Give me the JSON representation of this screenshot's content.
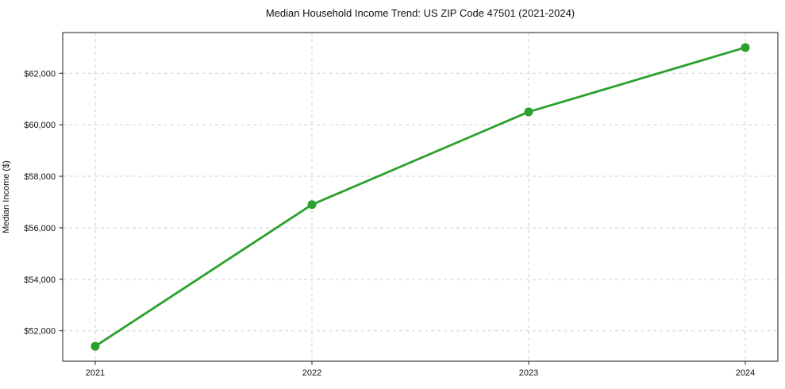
{
  "figure": {
    "title": "Median Household Income Trend: US ZIP Code 47501 (2021-2024)",
    "ylabel": "Median Income ($)"
  },
  "chart_data": {
    "type": "line",
    "title": "Median Household Income Trend: US ZIP Code 47501 (2021-2024)",
    "xlabel": "",
    "ylabel": "Median Income ($)",
    "x": [
      2021,
      2022,
      2023,
      2024
    ],
    "series": [
      {
        "name": "Median Household Income",
        "values": [
          51400,
          56900,
          60500,
          63000
        ]
      }
    ],
    "xticks": {
      "values": [
        2021,
        2022,
        2023,
        2024
      ],
      "labels": [
        "2021",
        "2022",
        "2023",
        "2024"
      ]
    },
    "yticks": {
      "values": [
        52000,
        54000,
        56000,
        58000,
        60000,
        62000
      ],
      "labels": [
        "$52,000",
        "$54,000",
        "$56,000",
        "$58,000",
        "$60,000",
        "$62,000"
      ]
    },
    "xlim": [
      2020.85,
      2024.15
    ],
    "ylim": [
      50820,
      63580
    ],
    "grid": true,
    "grid_style": "dashed",
    "legend": "none",
    "colors": {
      "line": "#2ca02c",
      "marker": "#2ca02c",
      "grid": "#cccccc",
      "axis": "#1a1a1a",
      "text": "#111111",
      "background": "#ffffff"
    }
  }
}
